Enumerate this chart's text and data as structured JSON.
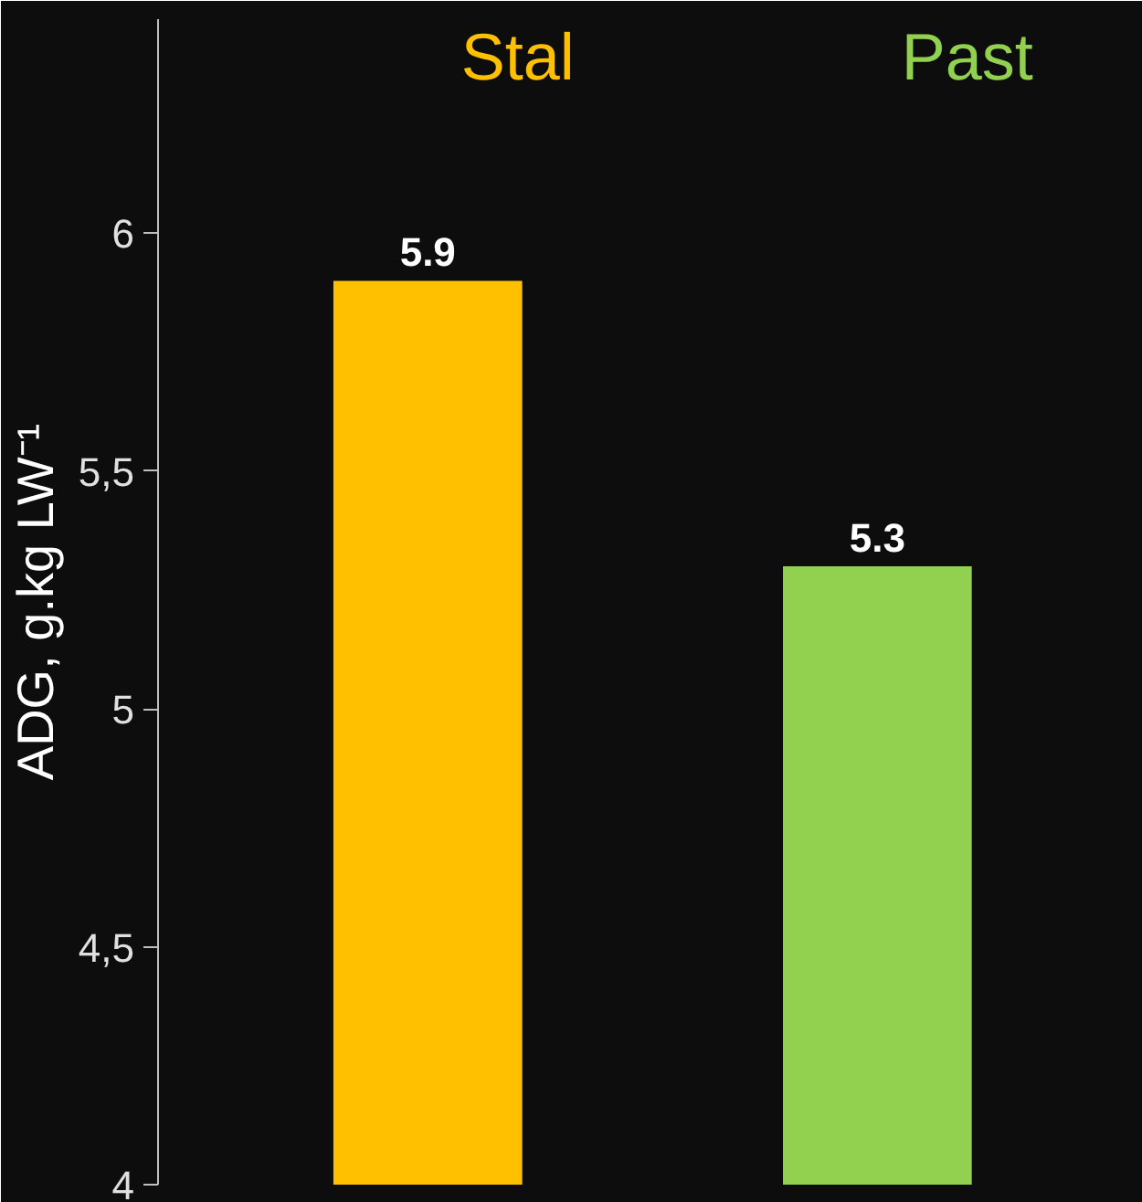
{
  "chart_data": {
    "type": "bar",
    "ylabel": "ADG, g.kg LW⁻¹",
    "categories": [
      "Stal",
      "Past"
    ],
    "values": [
      5.9,
      5.3
    ],
    "colors": [
      "#ffc000",
      "#92d050"
    ],
    "ylim": [
      4,
      6.45
    ],
    "yticks": [
      4,
      {
        "value": 4.5,
        "label": "4,5"
      },
      5,
      {
        "value": 5.5,
        "label": "5,5"
      },
      6
    ],
    "data_labels": true,
    "grid": false,
    "tick_labels": "y"
  }
}
